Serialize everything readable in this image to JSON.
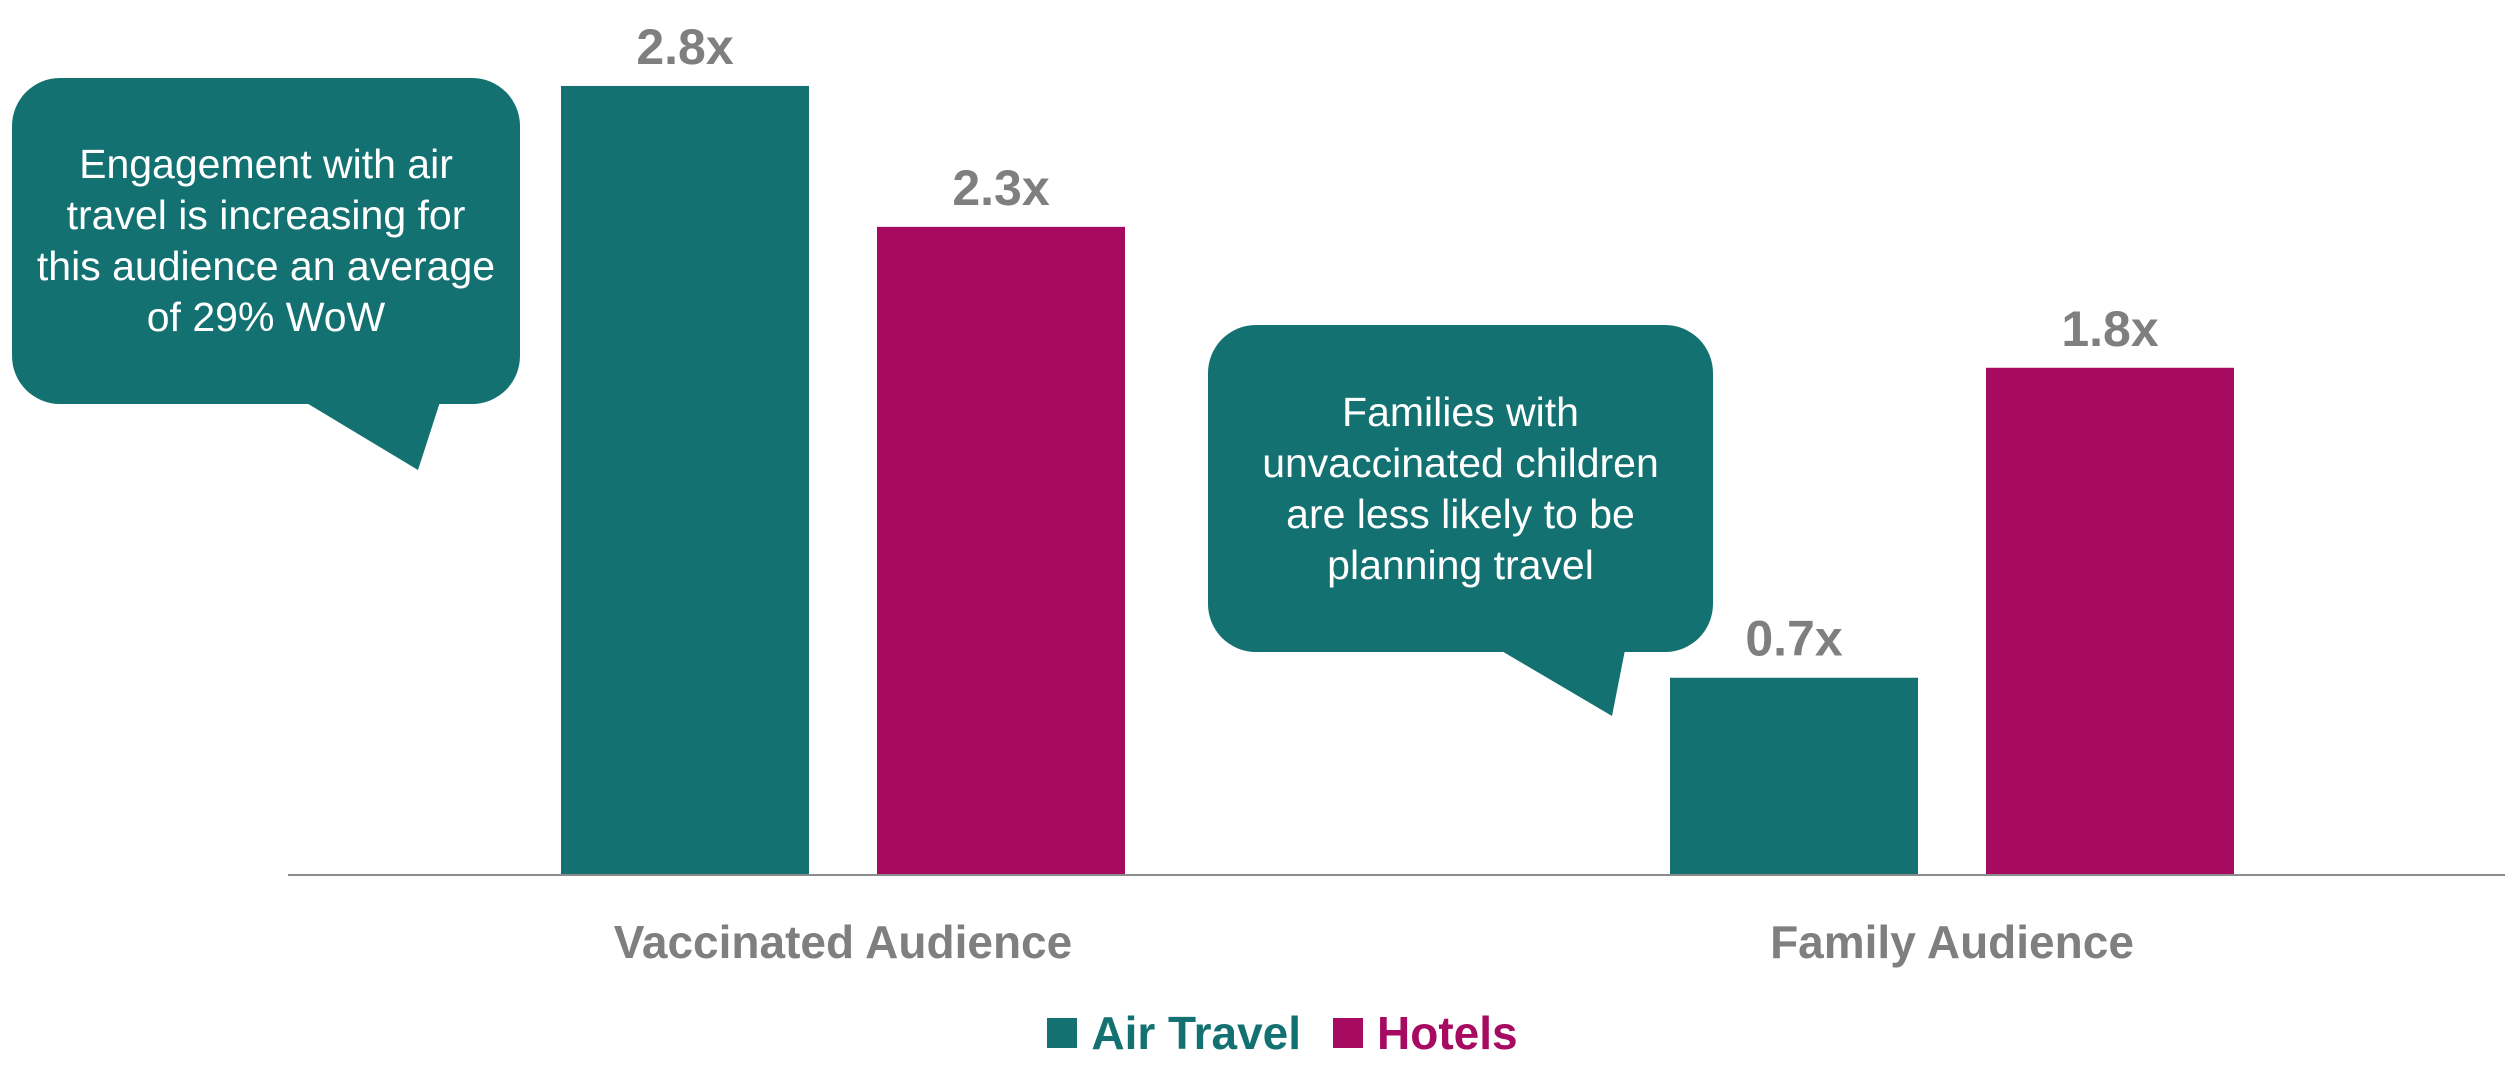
{
  "colors": {
    "air_travel": "#137271",
    "hotels": "#A60A61",
    "value_label": "#7F7F7F",
    "axis": "#8C8C8C",
    "callout_bg": "#137271",
    "callout_text": "#FFFFFF"
  },
  "chart_data": {
    "type": "bar",
    "categories": [
      "Vaccinated Audience",
      "Family Audience"
    ],
    "series": [
      {
        "name": "Air Travel",
        "color": "#137271",
        "values": [
          2.8,
          0.7
        ],
        "labels": [
          "2.8x",
          "0.7x"
        ]
      },
      {
        "name": "Hotels",
        "color": "#A60A61",
        "values": [
          2.3,
          1.8
        ],
        "labels": [
          "2.3x",
          "1.8x"
        ]
      }
    ],
    "ylim": [
      0,
      2.8
    ],
    "grid": false,
    "legend_position": "bottom-center",
    "annotations": [
      {
        "category": "Vaccinated Audience",
        "text": "Engagement with air travel is increasing for this audience an average of 29% WoW"
      },
      {
        "category": "Family Audience",
        "text": "Families with unvaccinated children are less likely to be planning travel"
      }
    ]
  },
  "callouts": {
    "vaccinated": "Engagement with air travel is increasing for this audience an average of 29% WoW",
    "family": "Families with unvaccinated children are less likely to be planning travel"
  },
  "legend": {
    "air_travel": "Air Travel",
    "hotels": "Hotels"
  }
}
